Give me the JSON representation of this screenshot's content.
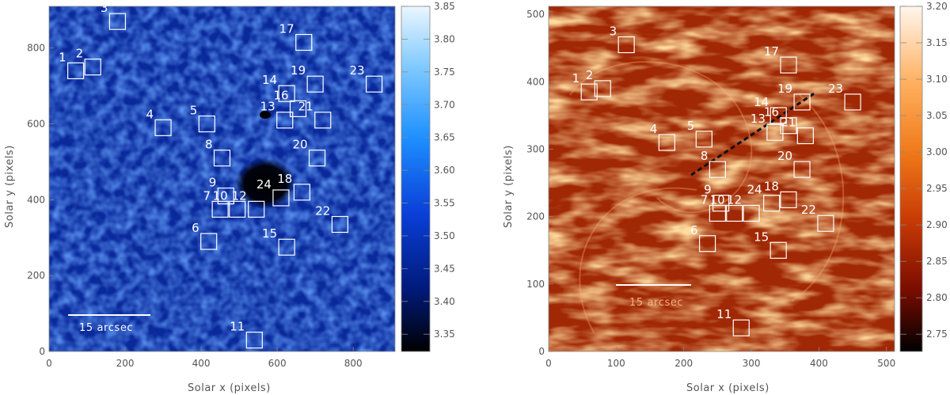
{
  "panels": [
    {
      "id": "left",
      "xlabel": "Solar x (pixels)",
      "ylabel": "Solar y (pixels)",
      "x_ticks": [
        "0",
        "200",
        "400",
        "600",
        "800"
      ],
      "y_ticks": [
        "0",
        "200",
        "400",
        "600",
        "800"
      ],
      "scale_bar_label": "15 arcsec",
      "colorbar_ticks": [
        "3.85",
        "3.80",
        "3.75",
        "3.70",
        "3.65",
        "3.60",
        "3.55",
        "3.50",
        "3.45",
        "3.40",
        "3.35"
      ],
      "colorbar_colors": [
        "#eaf6ff",
        "#7ec8ff",
        "#1e90ff",
        "#0a3fd8",
        "#001a7a",
        "#000000"
      ],
      "boxes": [
        {
          "label": "1",
          "x": 70,
          "y": 740
        },
        {
          "label": "2",
          "x": 115,
          "y": 750
        },
        {
          "label": "3",
          "x": 180,
          "y": 870
        },
        {
          "label": "4",
          "x": 300,
          "y": 590
        },
        {
          "label": "5",
          "x": 415,
          "y": 600
        },
        {
          "label": "6",
          "x": 420,
          "y": 290
        },
        {
          "label": "7",
          "x": 450,
          "y": 375
        },
        {
          "label": "8",
          "x": 455,
          "y": 510
        },
        {
          "label": "9",
          "x": 465,
          "y": 410
        },
        {
          "label": "10",
          "x": 495,
          "y": 375
        },
        {
          "label": "11",
          "x": 540,
          "y": 30
        },
        {
          "label": "12",
          "x": 545,
          "y": 375
        },
        {
          "label": "13",
          "x": 620,
          "y": 610
        },
        {
          "label": "14",
          "x": 625,
          "y": 680
        },
        {
          "label": "15",
          "x": 625,
          "y": 275
        },
        {
          "label": "16",
          "x": 655,
          "y": 640
        },
        {
          "label": "17",
          "x": 670,
          "y": 815
        },
        {
          "label": "18",
          "x": 665,
          "y": 420
        },
        {
          "label": "19",
          "x": 700,
          "y": 705
        },
        {
          "label": "20",
          "x": 705,
          "y": 510
        },
        {
          "label": "21",
          "x": 720,
          "y": 610
        },
        {
          "label": "22",
          "x": 765,
          "y": 335
        },
        {
          "label": "23",
          "x": 855,
          "y": 705
        },
        {
          "label": "24",
          "x": 610,
          "y": 405
        }
      ]
    },
    {
      "id": "right",
      "xlabel": "Solar x (pixels)",
      "ylabel": "Solar y (pixels)",
      "x_ticks": [
        "0",
        "100",
        "200",
        "300",
        "400",
        "500"
      ],
      "y_ticks": [
        "0",
        "100",
        "200",
        "300",
        "400",
        "500"
      ],
      "scale_bar_label": "15 arcsec",
      "colorbar_ticks": [
        "3.20",
        "3.15",
        "3.10",
        "3.05",
        "3.00",
        "2.95",
        "2.90",
        "2.85",
        "2.80",
        "2.75"
      ],
      "colorbar_colors": [
        "#fff6ee",
        "#ffb060",
        "#f07a1a",
        "#c83a05",
        "#7a0d00",
        "#000000"
      ],
      "boxes": [
        {
          "label": "2",
          "x": 80,
          "y": 390
        },
        {
          "label": "1",
          "x": 60,
          "y": 385
        },
        {
          "label": "3",
          "x": 115,
          "y": 455
        },
        {
          "label": "4",
          "x": 175,
          "y": 310
        },
        {
          "label": "5",
          "x": 230,
          "y": 315
        },
        {
          "label": "6",
          "x": 235,
          "y": 160
        },
        {
          "label": "7",
          "x": 250,
          "y": 205
        },
        {
          "label": "8",
          "x": 250,
          "y": 270
        },
        {
          "label": "9",
          "x": 255,
          "y": 220
        },
        {
          "label": "10",
          "x": 275,
          "y": 205
        },
        {
          "label": "11",
          "x": 285,
          "y": 35
        },
        {
          "label": "12",
          "x": 300,
          "y": 205
        },
        {
          "label": "13",
          "x": 335,
          "y": 325
        },
        {
          "label": "14",
          "x": 340,
          "y": 350
        },
        {
          "label": "15",
          "x": 340,
          "y": 150
        },
        {
          "label": "16",
          "x": 355,
          "y": 335
        },
        {
          "label": "17",
          "x": 355,
          "y": 425
        },
        {
          "label": "18",
          "x": 355,
          "y": 225
        },
        {
          "label": "19",
          "x": 375,
          "y": 370
        },
        {
          "label": "20",
          "x": 375,
          "y": 270
        },
        {
          "label": "21",
          "x": 380,
          "y": 320
        },
        {
          "label": "22",
          "x": 410,
          "y": 190
        },
        {
          "label": "23",
          "x": 450,
          "y": 370
        },
        {
          "label": "24",
          "x": 330,
          "y": 220
        }
      ]
    }
  ]
}
